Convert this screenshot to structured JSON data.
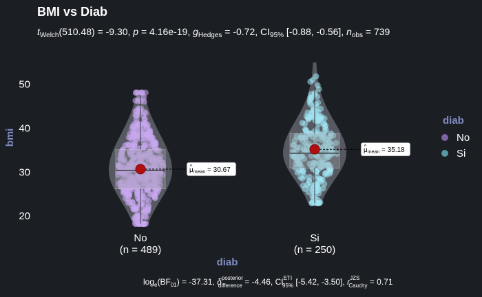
{
  "chart_data": {
    "type": "violin",
    "title": "BMI vs Diab",
    "subtitle": {
      "lead": "t",
      "lead_sub": "Welch",
      "stat": "(510.48) = -9.30, ",
      "p_symbol": "p",
      "p_value": " = 4.16e-19, ",
      "g_symbol": "g",
      "g_sub": "Hedges",
      "g_value": " = -0.72, CI",
      "ci_sub": "95%",
      "ci_value": " [-0.88, -0.56], ",
      "n_symbol": "n",
      "n_sub": "obs",
      "n_value": " = 739"
    },
    "caption": {
      "p1": "log",
      "p1_sub": "e",
      "p2": "(BF",
      "p2_sub": "01",
      "p3": ") = -37.31, ",
      "delta": "δ",
      "delta_sup": "posterior",
      "delta_sub": "difference",
      "p4": " = -4.46, CI",
      "ci_sup": "ETI",
      "ci_sub": "95%",
      "p5": " [-5.42, -3.50], ",
      "r": "r",
      "r_sup": "JZS",
      "r_sub": "Cauchy",
      "p6": " = 0.71"
    },
    "xlabel": "diab",
    "ylabel": "bmi",
    "ylim": [
      17.5,
      57
    ],
    "yticks": [
      20,
      30,
      40,
      50
    ],
    "legend": {
      "title": "diab",
      "position": "right",
      "entries": [
        {
          "label": "No",
          "color": "#8b6ab4"
        },
        {
          "label": "Si",
          "color": "#5ea6b0"
        }
      ]
    },
    "groups": [
      {
        "name": "No",
        "n_label": "(n = 489)",
        "n": 489,
        "color": "#c9a8f0",
        "mean": 30.67,
        "mean_label_prefix": "μ",
        "mean_label_sub": "mean",
        "mean_label_value": " = 30.67",
        "box": {
          "q1": 26.2,
          "median": 30.4,
          "q3": 35.1,
          "whisker_low": 18.2,
          "whisker_high": 47.5
        },
        "range": [
          18.2,
          48.1
        ]
      },
      {
        "name": "Si",
        "n_label": "(n = 250)",
        "n": 250,
        "color": "#a3e6f4",
        "mean": 35.18,
        "mean_label_prefix": "μ",
        "mean_label_sub": "mean",
        "mean_label_value": " = 35.18",
        "box": {
          "q1": 30.9,
          "median": 34.3,
          "q3": 38.8,
          "whisker_low": 22.9,
          "whisker_high": 49.6
        },
        "range": [
          22.9,
          55.0
        ]
      }
    ],
    "colors": {
      "background": "#1b1e23",
      "text": "#ffffff",
      "axis_title": "#7f8cc2",
      "mean_point": "#b10f0f",
      "violin_fill": "#60646c"
    }
  }
}
